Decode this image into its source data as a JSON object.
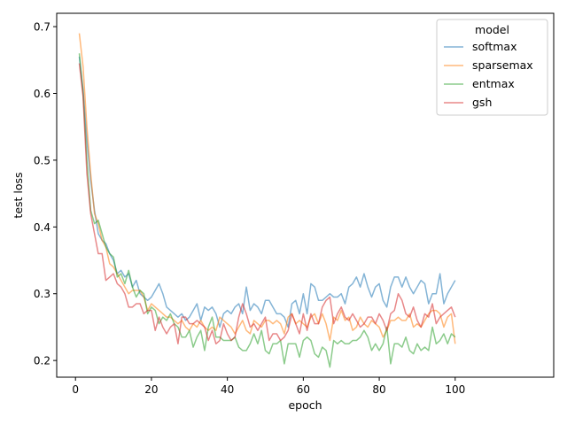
{
  "chart_data": {
    "type": "line",
    "title": "",
    "xlabel": "epoch",
    "ylabel": "test loss",
    "xlim": [
      -4.95,
      125.95
    ],
    "ylim": [
      0.175,
      0.72
    ],
    "xticks": [
      0,
      20,
      40,
      60,
      80,
      100
    ],
    "yticks": [
      0.2,
      0.3,
      0.4,
      0.5,
      0.6,
      0.7
    ],
    "ytick_labels": [
      "0.2",
      "0.3",
      "0.4",
      "0.5",
      "0.6",
      "0.7"
    ],
    "grid": false,
    "legend": {
      "title": "model",
      "position": "top-right"
    },
    "x": [
      1,
      2,
      3,
      4,
      5,
      6,
      7,
      8,
      9,
      10,
      11,
      12,
      13,
      14,
      15,
      16,
      17,
      18,
      19,
      20,
      21,
      22,
      23,
      24,
      25,
      26,
      27,
      28,
      29,
      30,
      31,
      32,
      33,
      34,
      35,
      36,
      37,
      38,
      39,
      40,
      41,
      42,
      43,
      44,
      45,
      46,
      47,
      48,
      49,
      50,
      51,
      52,
      53,
      54,
      55,
      56,
      57,
      58,
      59,
      60,
      61,
      62,
      63,
      64,
      65,
      66,
      67,
      68,
      69,
      70,
      71,
      72,
      73,
      74,
      75,
      76,
      77,
      78,
      79,
      80,
      81,
      82,
      83,
      84,
      85,
      86,
      87,
      88,
      89,
      90,
      91,
      92,
      93,
      94,
      95,
      96,
      97,
      98,
      99,
      100
    ],
    "series": [
      {
        "name": "softmax",
        "color": "#1f77b4",
        "values": [
          0.655,
          0.605,
          0.53,
          0.47,
          0.425,
          0.39,
          0.38,
          0.375,
          0.36,
          0.35,
          0.33,
          0.335,
          0.325,
          0.33,
          0.31,
          0.32,
          0.3,
          0.295,
          0.29,
          0.295,
          0.305,
          0.315,
          0.3,
          0.28,
          0.275,
          0.27,
          0.265,
          0.27,
          0.26,
          0.265,
          0.275,
          0.285,
          0.26,
          0.28,
          0.275,
          0.28,
          0.27,
          0.25,
          0.27,
          0.275,
          0.27,
          0.28,
          0.285,
          0.27,
          0.31,
          0.275,
          0.285,
          0.28,
          0.27,
          0.29,
          0.29,
          0.28,
          0.27,
          0.27,
          0.265,
          0.25,
          0.285,
          0.29,
          0.27,
          0.3,
          0.27,
          0.315,
          0.31,
          0.29,
          0.29,
          0.295,
          0.3,
          0.295,
          0.295,
          0.3,
          0.285,
          0.31,
          0.315,
          0.325,
          0.31,
          0.33,
          0.31,
          0.295,
          0.31,
          0.315,
          0.29,
          0.28,
          0.31,
          0.325,
          0.325,
          0.31,
          0.325,
          0.31,
          0.3,
          0.31,
          0.32,
          0.315,
          0.285,
          0.3,
          0.3,
          0.33,
          0.285,
          0.3,
          0.31,
          0.32
        ]
      },
      {
        "name": "sparsemax",
        "color": "#ff7f0e",
        "values": [
          0.69,
          0.64,
          0.55,
          0.48,
          0.42,
          0.405,
          0.38,
          0.37,
          0.345,
          0.34,
          0.33,
          0.32,
          0.31,
          0.3,
          0.305,
          0.305,
          0.305,
          0.295,
          0.275,
          0.285,
          0.28,
          0.275,
          0.27,
          0.265,
          0.265,
          0.26,
          0.255,
          0.26,
          0.25,
          0.245,
          0.255,
          0.25,
          0.26,
          0.25,
          0.245,
          0.25,
          0.245,
          0.265,
          0.26,
          0.255,
          0.25,
          0.24,
          0.25,
          0.26,
          0.245,
          0.24,
          0.26,
          0.255,
          0.25,
          0.26,
          0.26,
          0.255,
          0.26,
          0.255,
          0.24,
          0.265,
          0.27,
          0.255,
          0.26,
          0.255,
          0.25,
          0.265,
          0.27,
          0.255,
          0.27,
          0.255,
          0.23,
          0.265,
          0.26,
          0.275,
          0.26,
          0.265,
          0.245,
          0.25,
          0.265,
          0.255,
          0.25,
          0.26,
          0.255,
          0.25,
          0.235,
          0.245,
          0.26,
          0.26,
          0.265,
          0.26,
          0.26,
          0.27,
          0.25,
          0.255,
          0.25,
          0.26,
          0.27,
          0.275,
          0.275,
          0.27,
          0.25,
          0.265,
          0.27,
          0.225
        ]
      },
      {
        "name": "entmax",
        "color": "#2ca02c",
        "values": [
          0.66,
          0.6,
          0.5,
          0.425,
          0.405,
          0.41,
          0.39,
          0.37,
          0.36,
          0.355,
          0.325,
          0.33,
          0.315,
          0.335,
          0.31,
          0.295,
          0.305,
          0.3,
          0.27,
          0.28,
          0.275,
          0.255,
          0.265,
          0.26,
          0.27,
          0.255,
          0.25,
          0.235,
          0.235,
          0.245,
          0.22,
          0.235,
          0.245,
          0.215,
          0.25,
          0.265,
          0.235,
          0.235,
          0.23,
          0.23,
          0.23,
          0.235,
          0.22,
          0.215,
          0.215,
          0.225,
          0.24,
          0.225,
          0.245,
          0.215,
          0.21,
          0.225,
          0.225,
          0.23,
          0.195,
          0.225,
          0.225,
          0.225,
          0.205,
          0.23,
          0.235,
          0.23,
          0.21,
          0.205,
          0.22,
          0.215,
          0.19,
          0.23,
          0.225,
          0.23,
          0.225,
          0.225,
          0.23,
          0.23,
          0.235,
          0.245,
          0.235,
          0.215,
          0.225,
          0.215,
          0.225,
          0.25,
          0.195,
          0.225,
          0.225,
          0.22,
          0.235,
          0.215,
          0.21,
          0.225,
          0.215,
          0.22,
          0.215,
          0.25,
          0.225,
          0.23,
          0.24,
          0.225,
          0.24,
          0.235
        ]
      },
      {
        "name": "gsh",
        "color": "#d62728",
        "values": [
          0.645,
          0.595,
          0.48,
          0.42,
          0.39,
          0.36,
          0.36,
          0.32,
          0.325,
          0.33,
          0.315,
          0.31,
          0.3,
          0.28,
          0.28,
          0.285,
          0.285,
          0.27,
          0.275,
          0.275,
          0.245,
          0.265,
          0.25,
          0.24,
          0.25,
          0.255,
          0.225,
          0.265,
          0.265,
          0.255,
          0.255,
          0.26,
          0.255,
          0.25,
          0.23,
          0.245,
          0.225,
          0.23,
          0.255,
          0.24,
          0.23,
          0.235,
          0.265,
          0.285,
          0.27,
          0.25,
          0.255,
          0.245,
          0.255,
          0.265,
          0.23,
          0.24,
          0.24,
          0.23,
          0.235,
          0.245,
          0.27,
          0.255,
          0.24,
          0.27,
          0.245,
          0.27,
          0.255,
          0.255,
          0.28,
          0.29,
          0.295,
          0.255,
          0.27,
          0.28,
          0.265,
          0.26,
          0.27,
          0.26,
          0.25,
          0.255,
          0.265,
          0.265,
          0.255,
          0.27,
          0.26,
          0.245,
          0.27,
          0.275,
          0.3,
          0.29,
          0.27,
          0.265,
          0.28,
          0.26,
          0.25,
          0.27,
          0.265,
          0.285,
          0.255,
          0.265,
          0.27,
          0.275,
          0.28,
          0.265
        ]
      }
    ]
  }
}
